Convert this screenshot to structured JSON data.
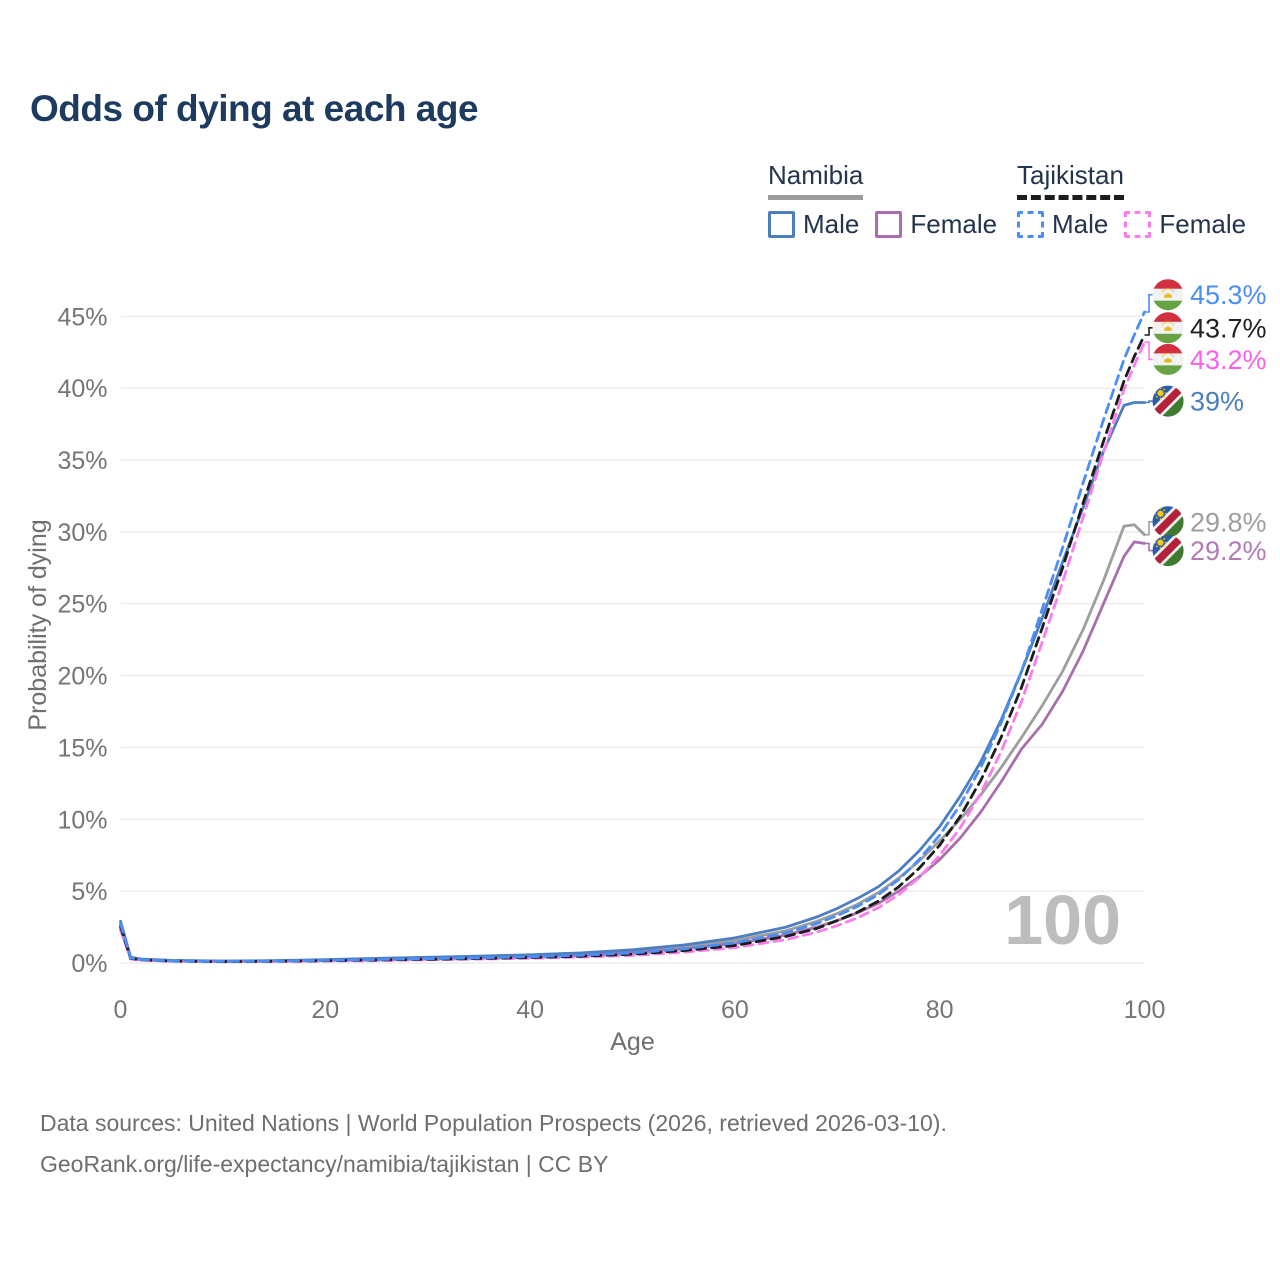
{
  "page": {
    "title": "Odds of dying at each age"
  },
  "legend": {
    "groups": [
      {
        "title": "Namibia",
        "line_style": "solid",
        "items": [
          {
            "label": "Male",
            "color": "#4d7ebf"
          },
          {
            "label": "Female",
            "color": "#a96fad"
          }
        ]
      },
      {
        "title": "Tajikistan",
        "line_style": "dashed",
        "items": [
          {
            "label": "Male",
            "color": "#4a8ef6"
          },
          {
            "label": "Female",
            "color": "#fb7cec"
          }
        ]
      }
    ]
  },
  "chart_data": {
    "type": "line",
    "title": "Odds of dying at each age",
    "xlabel": "Age",
    "ylabel": "Probability of dying",
    "xlim": [
      0,
      100
    ],
    "ylim_pct": [
      0,
      47
    ],
    "grid": "horizontal",
    "legend_position": "top-right",
    "watermark": "100",
    "x_ticks": [
      {
        "value": 0,
        "label": "0"
      },
      {
        "value": 20,
        "label": "20"
      },
      {
        "value": 40,
        "label": "40"
      },
      {
        "value": 60,
        "label": "60"
      },
      {
        "value": 80,
        "label": "80"
      },
      {
        "value": 100,
        "label": "100"
      }
    ],
    "y_ticks": [
      {
        "value": 0,
        "label": "0%"
      },
      {
        "value": 5,
        "label": "5%"
      },
      {
        "value": 10,
        "label": "10%"
      },
      {
        "value": 15,
        "label": "15%"
      },
      {
        "value": 20,
        "label": "20%"
      },
      {
        "value": 25,
        "label": "25%"
      },
      {
        "value": 30,
        "label": "30%"
      },
      {
        "value": 35,
        "label": "35%"
      },
      {
        "value": 40,
        "label": "40%"
      },
      {
        "value": 45,
        "label": "45%"
      }
    ],
    "ages": [
      0,
      1,
      2,
      5,
      10,
      15,
      20,
      25,
      30,
      35,
      40,
      45,
      50,
      55,
      60,
      65,
      68,
      70,
      72,
      74,
      76,
      78,
      80,
      82,
      84,
      86,
      88,
      90,
      92,
      94,
      96,
      98,
      99,
      100
    ],
    "series": [
      {
        "id": "nam_total",
        "country": "Namibia",
        "sex": "Both",
        "color": "#9e9e9e",
        "dash": false,
        "flag": "namibia",
        "end_label": "29.8%",
        "end_label_color": "#9e9e9e",
        "label_pct": 30.7,
        "values": [
          2.7,
          0.36,
          0.26,
          0.16,
          0.13,
          0.15,
          0.21,
          0.28,
          0.35,
          0.43,
          0.51,
          0.63,
          0.82,
          1.1,
          1.55,
          2.25,
          2.9,
          3.45,
          4.1,
          4.9,
          5.9,
          7.1,
          8.5,
          10.0,
          11.7,
          13.6,
          15.7,
          17.9,
          20.3,
          23.2,
          26.6,
          30.4,
          30.5,
          29.8
        ]
      },
      {
        "id": "nam_female",
        "country": "Namibia",
        "sex": "Female",
        "color": "#a96fad",
        "dash": false,
        "flag": "namibia",
        "end_label": "29.2%",
        "end_label_color": "#b579b5",
        "label_pct": 28.7,
        "values": [
          2.4,
          0.3,
          0.22,
          0.14,
          0.11,
          0.13,
          0.18,
          0.25,
          0.32,
          0.39,
          0.47,
          0.58,
          0.74,
          0.98,
          1.35,
          1.95,
          2.5,
          2.95,
          3.5,
          4.15,
          5.0,
          6.0,
          7.2,
          8.7,
          10.5,
          12.6,
          14.9,
          16.6,
          18.9,
          21.7,
          25.0,
          28.3,
          29.3,
          29.2
        ]
      },
      {
        "id": "nam_male",
        "country": "Namibia",
        "sex": "Male",
        "color": "#4d7ebf",
        "dash": false,
        "flag": "namibia",
        "end_label": "39%",
        "end_label_color": "#4d7ebf",
        "label_pct": 39.1,
        "values": [
          2.9,
          0.4,
          0.28,
          0.18,
          0.14,
          0.17,
          0.24,
          0.32,
          0.4,
          0.48,
          0.57,
          0.7,
          0.92,
          1.25,
          1.75,
          2.5,
          3.2,
          3.8,
          4.5,
          5.3,
          6.4,
          7.8,
          9.5,
          11.6,
          14.0,
          16.9,
          20.3,
          24.0,
          27.9,
          31.7,
          35.6,
          38.8,
          39.0,
          39.0
        ]
      },
      {
        "id": "taj_female",
        "country": "Tajikistan",
        "sex": "Female",
        "color": "#fb7cec",
        "dash": true,
        "flag": "tajikistan",
        "end_label": "43.2%",
        "end_label_color": "#fb5fe6",
        "label_pct": 42.0,
        "values": [
          2.3,
          0.28,
          0.2,
          0.12,
          0.09,
          0.1,
          0.13,
          0.17,
          0.22,
          0.27,
          0.33,
          0.41,
          0.53,
          0.75,
          1.07,
          1.63,
          2.15,
          2.6,
          3.15,
          3.85,
          4.75,
          5.95,
          7.5,
          9.4,
          11.8,
          14.7,
          18.2,
          22.3,
          26.5,
          31.0,
          35.5,
          39.9,
          41.6,
          43.2
        ]
      },
      {
        "id": "taj_total",
        "country": "Tajikistan",
        "sex": "Both",
        "color": "#1c1c1c",
        "dash": true,
        "flag": "tajikistan",
        "end_label": "43.7%",
        "end_label_color": "#212121",
        "label_pct": 44.2,
        "values": [
          2.55,
          0.32,
          0.22,
          0.13,
          0.1,
          0.12,
          0.16,
          0.21,
          0.26,
          0.31,
          0.38,
          0.47,
          0.61,
          0.86,
          1.22,
          1.85,
          2.4,
          2.95,
          3.55,
          4.3,
          5.3,
          6.6,
          8.2,
          10.2,
          12.7,
          15.7,
          19.2,
          23.3,
          27.5,
          32.0,
          36.3,
          40.5,
          42.2,
          43.7
        ]
      },
      {
        "id": "taj_male",
        "country": "Tajikistan",
        "sex": "Male",
        "color": "#4a8ef6",
        "dash": true,
        "flag": "tajikistan",
        "end_label": "45.3%",
        "end_label_color": "#4a8ef6",
        "label_pct": 46.5,
        "values": [
          2.75,
          0.35,
          0.24,
          0.14,
          0.11,
          0.13,
          0.18,
          0.24,
          0.3,
          0.36,
          0.44,
          0.54,
          0.7,
          0.98,
          1.4,
          2.1,
          2.75,
          3.3,
          3.95,
          4.75,
          5.8,
          7.2,
          8.9,
          11.0,
          13.6,
          16.7,
          20.3,
          24.6,
          28.9,
          33.4,
          37.8,
          42.0,
          43.7,
          45.3
        ]
      }
    ]
  },
  "footer": {
    "line1": "Data sources: United Nations | World Population Prospects (2026, retrieved 2026-03-10).",
    "line2": "GeoRank.org/life-expectancy/namibia/tajikistan | CC BY"
  }
}
